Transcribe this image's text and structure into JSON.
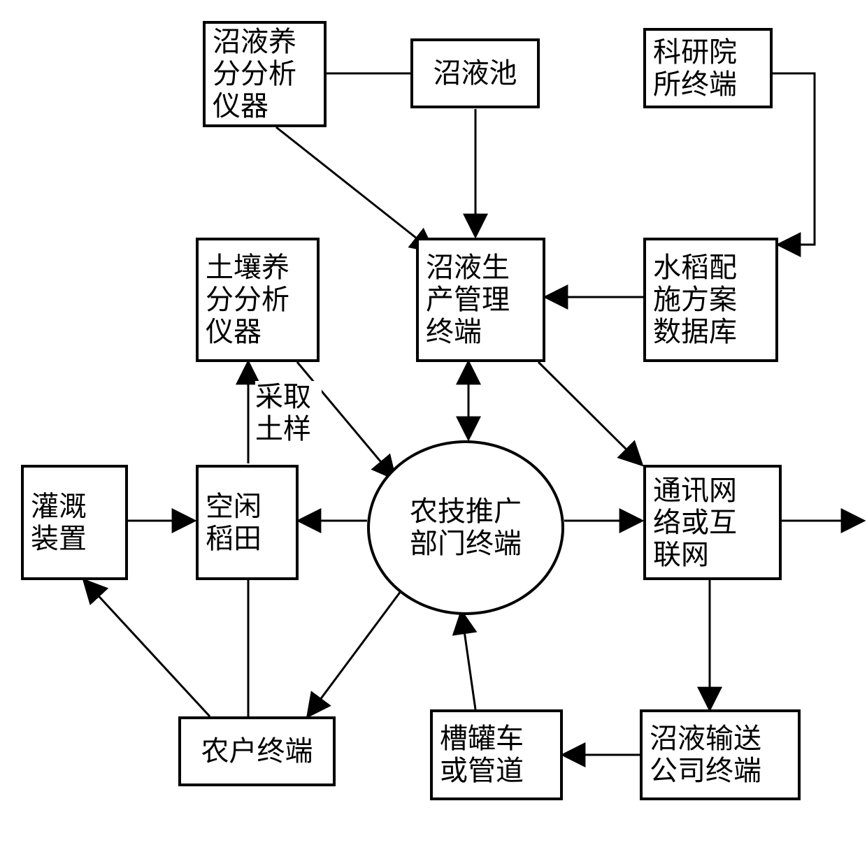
{
  "diagram": {
    "type": "flowchart",
    "background_color": "#ffffff",
    "border_color": "#000000",
    "border_width": 4,
    "text_color": "#000000",
    "font_size": 40,
    "arrow_stroke_width": 3,
    "nodes": {
      "nutrient_analyzer": {
        "label": "沼液养\n分分析\n仪器"
      },
      "biogas_pond": {
        "label": "沼液池"
      },
      "institute_terminal": {
        "label": "科研院\n所终端"
      },
      "soil_analyzer": {
        "label": "土壤养\n分分析\n仪器"
      },
      "production_terminal": {
        "label": "沼液生\n产管理\n终端"
      },
      "scheme_database": {
        "label": "水稻配\n施方案\n数据库"
      },
      "irrigation_device": {
        "label": "灌溉\n装置"
      },
      "idle_paddy": {
        "label": "空闲\n稻田"
      },
      "extension_terminal": {
        "label": "农技推广\n部门终端"
      },
      "network": {
        "label": "通讯网\n络或互\n联网"
      },
      "farmer_terminal": {
        "label": "农户终端"
      },
      "tanker_pipeline": {
        "label": "槽罐车\n或管道"
      },
      "transport_terminal": {
        "label": "沼液输送\n公司终端"
      }
    },
    "edge_labels": {
      "sampling": "采取\n土样"
    }
  }
}
